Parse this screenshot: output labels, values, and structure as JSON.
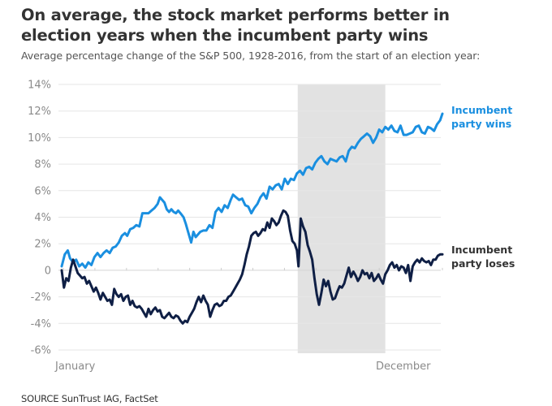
{
  "header": {
    "title": "On average, the stock market performs better in election years when the incumbent party wins",
    "subtitle": "Average percentage change of the S&P 500, 1928-2016, from the start of an election year:"
  },
  "footer": {
    "source": "SOURCE SunTrust IAG, FactSet"
  },
  "colors": {
    "wins": "#1a8fe0",
    "loses": "#0f1f45",
    "shade": "#e2e2e2",
    "grid": "#e6e6e6",
    "tick_text": "#8a8a8a"
  },
  "chart_data": {
    "type": "line",
    "title": "On average, the stock market performs better in election years when the incumbent party wins",
    "subtitle": "Average percentage change of the S&P 500, 1928-2016, from the start of an election year:",
    "xlabel": "",
    "ylabel": "",
    "x_unit": "fraction of year (0 = January start, 1 = December end)",
    "x_tick_labels": [
      "January",
      "December"
    ],
    "xlim": [
      0,
      1
    ],
    "ylim": [
      -6,
      14
    ],
    "y_ticks": [
      14,
      12,
      10,
      8,
      6,
      4,
      2,
      0,
      -2,
      -4,
      -6
    ],
    "y_tick_labels": [
      "14%",
      "12%",
      "10%",
      "8%",
      "6%",
      "4%",
      "2%",
      "0",
      "-2%",
      "-4%",
      "-6%"
    ],
    "grid": true,
    "month_ticks_on_zero_line": 12,
    "shaded_region": {
      "x_start": 0.62,
      "x_end": 0.85,
      "note": "highlighted period (roughly Sep–Nov)"
    },
    "legend": "direct labels at right end of lines",
    "series": [
      {
        "name": "Incumbent party wins",
        "label_lines": [
          "Incumbent",
          "party wins"
        ],
        "color": "#1a8fe0",
        "points": [
          [
            0.0,
            0.3
          ],
          [
            0.008,
            1.2
          ],
          [
            0.016,
            1.5
          ],
          [
            0.022,
            0.9
          ],
          [
            0.03,
            0.6
          ],
          [
            0.038,
            0.8
          ],
          [
            0.046,
            0.3
          ],
          [
            0.054,
            0.5
          ],
          [
            0.062,
            0.2
          ],
          [
            0.07,
            0.6
          ],
          [
            0.078,
            0.4
          ],
          [
            0.086,
            1.0
          ],
          [
            0.094,
            1.3
          ],
          [
            0.102,
            1.0
          ],
          [
            0.11,
            1.3
          ],
          [
            0.118,
            1.5
          ],
          [
            0.126,
            1.3
          ],
          [
            0.134,
            1.7
          ],
          [
            0.142,
            1.8
          ],
          [
            0.15,
            2.1
          ],
          [
            0.158,
            2.6
          ],
          [
            0.166,
            2.8
          ],
          [
            0.172,
            2.6
          ],
          [
            0.18,
            3.1
          ],
          [
            0.188,
            3.2
          ],
          [
            0.196,
            3.4
          ],
          [
            0.204,
            3.3
          ],
          [
            0.212,
            4.3
          ],
          [
            0.22,
            4.3
          ],
          [
            0.228,
            4.3
          ],
          [
            0.236,
            4.5
          ],
          [
            0.244,
            4.7
          ],
          [
            0.252,
            5.0
          ],
          [
            0.258,
            5.5
          ],
          [
            0.264,
            5.3
          ],
          [
            0.27,
            5.1
          ],
          [
            0.276,
            4.6
          ],
          [
            0.282,
            4.4
          ],
          [
            0.288,
            4.6
          ],
          [
            0.294,
            4.4
          ],
          [
            0.3,
            4.3
          ],
          [
            0.306,
            4.5
          ],
          [
            0.312,
            4.3
          ],
          [
            0.32,
            4.0
          ],
          [
            0.326,
            3.5
          ],
          [
            0.332,
            2.9
          ],
          [
            0.336,
            2.5
          ],
          [
            0.34,
            2.1
          ],
          [
            0.346,
            2.9
          ],
          [
            0.352,
            2.5
          ],
          [
            0.358,
            2.7
          ],
          [
            0.364,
            2.9
          ],
          [
            0.372,
            3.0
          ],
          [
            0.38,
            3.0
          ],
          [
            0.388,
            3.4
          ],
          [
            0.396,
            3.2
          ],
          [
            0.404,
            4.4
          ],
          [
            0.412,
            4.7
          ],
          [
            0.42,
            4.4
          ],
          [
            0.428,
            4.9
          ],
          [
            0.436,
            4.7
          ],
          [
            0.444,
            5.3
          ],
          [
            0.45,
            5.7
          ],
          [
            0.458,
            5.5
          ],
          [
            0.466,
            5.3
          ],
          [
            0.474,
            5.4
          ],
          [
            0.482,
            4.9
          ],
          [
            0.49,
            4.8
          ],
          [
            0.498,
            4.3
          ],
          [
            0.506,
            4.7
          ],
          [
            0.514,
            5.0
          ],
          [
            0.522,
            5.5
          ],
          [
            0.53,
            5.8
          ],
          [
            0.538,
            5.4
          ],
          [
            0.546,
            6.3
          ],
          [
            0.554,
            6.1
          ],
          [
            0.562,
            6.4
          ],
          [
            0.57,
            6.5
          ],
          [
            0.578,
            6.1
          ],
          [
            0.586,
            6.9
          ],
          [
            0.594,
            6.5
          ],
          [
            0.602,
            6.9
          ],
          [
            0.61,
            6.8
          ],
          [
            0.618,
            7.3
          ],
          [
            0.626,
            7.5
          ],
          [
            0.634,
            7.2
          ],
          [
            0.642,
            7.7
          ],
          [
            0.65,
            7.8
          ],
          [
            0.658,
            7.6
          ],
          [
            0.666,
            8.1
          ],
          [
            0.674,
            8.4
          ],
          [
            0.682,
            8.6
          ],
          [
            0.69,
            8.2
          ],
          [
            0.698,
            8.0
          ],
          [
            0.706,
            8.4
          ],
          [
            0.714,
            8.3
          ],
          [
            0.722,
            8.2
          ],
          [
            0.73,
            8.5
          ],
          [
            0.738,
            8.6
          ],
          [
            0.746,
            8.2
          ],
          [
            0.754,
            9.0
          ],
          [
            0.762,
            9.3
          ],
          [
            0.77,
            9.2
          ],
          [
            0.778,
            9.6
          ],
          [
            0.786,
            9.9
          ],
          [
            0.794,
            10.1
          ],
          [
            0.802,
            10.3
          ],
          [
            0.81,
            10.1
          ],
          [
            0.818,
            9.6
          ],
          [
            0.826,
            10.0
          ],
          [
            0.834,
            10.6
          ],
          [
            0.842,
            10.4
          ],
          [
            0.85,
            10.8
          ],
          [
            0.858,
            10.6
          ],
          [
            0.866,
            10.9
          ],
          [
            0.874,
            10.5
          ],
          [
            0.882,
            10.4
          ],
          [
            0.89,
            10.9
          ],
          [
            0.898,
            10.2
          ],
          [
            0.906,
            10.2
          ],
          [
            0.914,
            10.3
          ],
          [
            0.922,
            10.4
          ],
          [
            0.93,
            10.8
          ],
          [
            0.938,
            10.9
          ],
          [
            0.946,
            10.4
          ],
          [
            0.954,
            10.3
          ],
          [
            0.962,
            10.8
          ],
          [
            0.97,
            10.7
          ],
          [
            0.978,
            10.5
          ],
          [
            0.986,
            11.0
          ],
          [
            0.994,
            11.3
          ],
          [
            1.0,
            11.8
          ]
        ]
      },
      {
        "name": "Incumbent party loses",
        "label_lines": [
          "Incumbent",
          "party loses"
        ],
        "color": "#0f1f45",
        "points": [
          [
            0.0,
            0.0
          ],
          [
            0.006,
            -1.3
          ],
          [
            0.012,
            -0.6
          ],
          [
            0.018,
            -0.8
          ],
          [
            0.024,
            0.2
          ],
          [
            0.03,
            0.8
          ],
          [
            0.036,
            0.3
          ],
          [
            0.042,
            -0.2
          ],
          [
            0.048,
            -0.4
          ],
          [
            0.054,
            -0.6
          ],
          [
            0.06,
            -0.5
          ],
          [
            0.066,
            -1.0
          ],
          [
            0.072,
            -0.8
          ],
          [
            0.078,
            -1.2
          ],
          [
            0.084,
            -1.6
          ],
          [
            0.09,
            -1.3
          ],
          [
            0.096,
            -1.7
          ],
          [
            0.102,
            -2.2
          ],
          [
            0.108,
            -1.7
          ],
          [
            0.114,
            -2.0
          ],
          [
            0.12,
            -2.3
          ],
          [
            0.126,
            -2.2
          ],
          [
            0.132,
            -2.6
          ],
          [
            0.138,
            -1.4
          ],
          [
            0.144,
            -1.8
          ],
          [
            0.15,
            -2.0
          ],
          [
            0.156,
            -1.8
          ],
          [
            0.162,
            -2.3
          ],
          [
            0.168,
            -2.0
          ],
          [
            0.174,
            -1.9
          ],
          [
            0.18,
            -2.6
          ],
          [
            0.186,
            -2.3
          ],
          [
            0.192,
            -2.7
          ],
          [
            0.198,
            -2.8
          ],
          [
            0.204,
            -2.7
          ],
          [
            0.21,
            -2.9
          ],
          [
            0.216,
            -3.2
          ],
          [
            0.222,
            -3.5
          ],
          [
            0.228,
            -2.9
          ],
          [
            0.234,
            -3.3
          ],
          [
            0.24,
            -3.0
          ],
          [
            0.246,
            -2.8
          ],
          [
            0.252,
            -3.1
          ],
          [
            0.258,
            -3.0
          ],
          [
            0.264,
            -3.5
          ],
          [
            0.27,
            -3.6
          ],
          [
            0.276,
            -3.4
          ],
          [
            0.282,
            -3.2
          ],
          [
            0.288,
            -3.5
          ],
          [
            0.294,
            -3.6
          ],
          [
            0.3,
            -3.4
          ],
          [
            0.306,
            -3.5
          ],
          [
            0.312,
            -3.8
          ],
          [
            0.318,
            -4.0
          ],
          [
            0.324,
            -3.8
          ],
          [
            0.33,
            -3.9
          ],
          [
            0.336,
            -3.5
          ],
          [
            0.342,
            -3.2
          ],
          [
            0.348,
            -2.9
          ],
          [
            0.354,
            -2.4
          ],
          [
            0.36,
            -2.0
          ],
          [
            0.366,
            -2.4
          ],
          [
            0.372,
            -1.9
          ],
          [
            0.378,
            -2.3
          ],
          [
            0.384,
            -2.6
          ],
          [
            0.39,
            -3.5
          ],
          [
            0.396,
            -3.0
          ],
          [
            0.402,
            -2.6
          ],
          [
            0.408,
            -2.5
          ],
          [
            0.414,
            -2.7
          ],
          [
            0.42,
            -2.6
          ],
          [
            0.426,
            -2.3
          ],
          [
            0.432,
            -2.3
          ],
          [
            0.438,
            -2.0
          ],
          [
            0.444,
            -1.9
          ],
          [
            0.45,
            -1.6
          ],
          [
            0.456,
            -1.3
          ],
          [
            0.462,
            -1.0
          ],
          [
            0.468,
            -0.7
          ],
          [
            0.474,
            -0.3
          ],
          [
            0.48,
            0.4
          ],
          [
            0.486,
            1.2
          ],
          [
            0.492,
            1.8
          ],
          [
            0.498,
            2.6
          ],
          [
            0.504,
            2.8
          ],
          [
            0.51,
            2.9
          ],
          [
            0.516,
            2.6
          ],
          [
            0.522,
            2.8
          ],
          [
            0.528,
            3.1
          ],
          [
            0.534,
            3.0
          ],
          [
            0.54,
            3.6
          ],
          [
            0.546,
            3.2
          ],
          [
            0.552,
            3.9
          ],
          [
            0.558,
            3.7
          ],
          [
            0.564,
            3.4
          ],
          [
            0.57,
            3.6
          ],
          [
            0.576,
            4.1
          ],
          [
            0.582,
            4.5
          ],
          [
            0.588,
            4.4
          ],
          [
            0.594,
            4.1
          ],
          [
            0.6,
            3.0
          ],
          [
            0.606,
            2.2
          ],
          [
            0.612,
            2.0
          ],
          [
            0.618,
            1.5
          ],
          [
            0.622,
            0.3
          ],
          [
            0.628,
            3.9
          ],
          [
            0.634,
            3.3
          ],
          [
            0.64,
            2.9
          ],
          [
            0.646,
            1.9
          ],
          [
            0.652,
            1.4
          ],
          [
            0.658,
            0.8
          ],
          [
            0.664,
            -0.6
          ],
          [
            0.67,
            -1.8
          ],
          [
            0.676,
            -2.6
          ],
          [
            0.682,
            -1.7
          ],
          [
            0.688,
            -0.7
          ],
          [
            0.694,
            -1.2
          ],
          [
            0.7,
            -0.8
          ],
          [
            0.706,
            -1.6
          ],
          [
            0.712,
            -2.2
          ],
          [
            0.718,
            -2.1
          ],
          [
            0.724,
            -1.6
          ],
          [
            0.73,
            -1.2
          ],
          [
            0.736,
            -1.3
          ],
          [
            0.742,
            -1.0
          ],
          [
            0.748,
            -0.4
          ],
          [
            0.754,
            0.2
          ],
          [
            0.76,
            -0.5
          ],
          [
            0.766,
            -0.1
          ],
          [
            0.772,
            -0.4
          ],
          [
            0.778,
            -0.8
          ],
          [
            0.784,
            -0.5
          ],
          [
            0.79,
            0.0
          ],
          [
            0.796,
            -0.3
          ],
          [
            0.802,
            -0.2
          ],
          [
            0.808,
            -0.6
          ],
          [
            0.814,
            -0.2
          ],
          [
            0.82,
            -0.8
          ],
          [
            0.826,
            -0.6
          ],
          [
            0.832,
            -0.3
          ],
          [
            0.838,
            -0.7
          ],
          [
            0.844,
            -1.0
          ],
          [
            0.85,
            -0.3
          ],
          [
            0.856,
            0.0
          ],
          [
            0.862,
            0.4
          ],
          [
            0.868,
            0.6
          ],
          [
            0.874,
            0.2
          ],
          [
            0.88,
            0.4
          ],
          [
            0.886,
            0.0
          ],
          [
            0.892,
            0.3
          ],
          [
            0.898,
            0.2
          ],
          [
            0.904,
            -0.2
          ],
          [
            0.91,
            0.4
          ],
          [
            0.916,
            -0.8
          ],
          [
            0.922,
            0.3
          ],
          [
            0.928,
            0.6
          ],
          [
            0.934,
            0.8
          ],
          [
            0.94,
            0.6
          ],
          [
            0.946,
            0.9
          ],
          [
            0.952,
            0.7
          ],
          [
            0.958,
            0.6
          ],
          [
            0.964,
            0.7
          ],
          [
            0.97,
            0.4
          ],
          [
            0.976,
            0.8
          ],
          [
            0.982,
            0.8
          ],
          [
            0.988,
            1.1
          ],
          [
            0.994,
            1.2
          ],
          [
            1.0,
            1.2
          ]
        ]
      }
    ]
  }
}
